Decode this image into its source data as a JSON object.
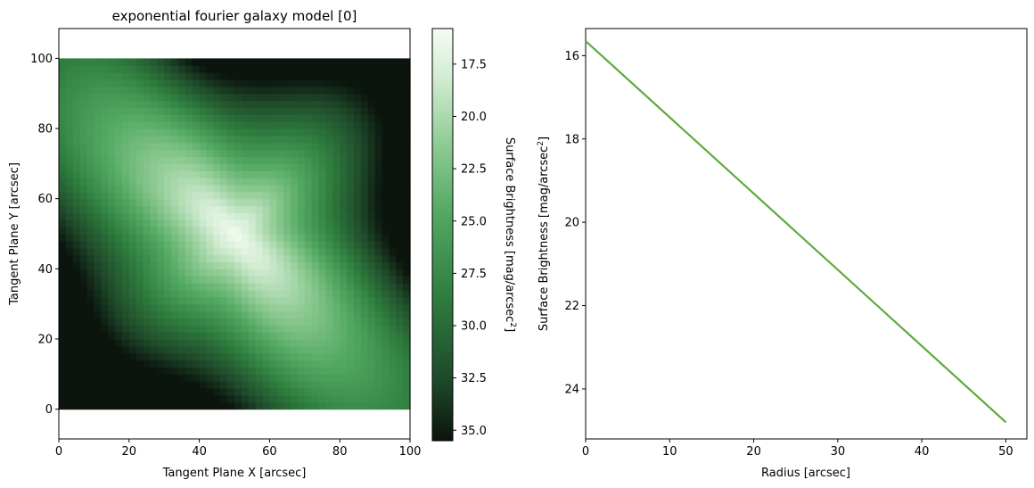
{
  "chart_data": [
    {
      "type": "heatmap",
      "title": "exponential fourier galaxy model [0]",
      "xlabel": "Tangent Plane X [arcsec]",
      "ylabel": "Tangent Plane Y [arcsec]",
      "xlim": [
        0,
        100
      ],
      "ylim": [
        -8.5,
        108.5
      ],
      "image_extent": [
        0,
        100,
        0,
        100
      ],
      "xticks": [
        0,
        20,
        40,
        60,
        80,
        100
      ],
      "yticks": [
        0,
        20,
        40,
        60,
        80,
        100
      ],
      "colorbar": {
        "label": "Surface Brightness [mag/arcsec",
        "label_sup": "2",
        "label_end": "]",
        "range": [
          15.8,
          35.5
        ],
        "ticks": [
          17.5,
          20.0,
          22.5,
          25.0,
          27.5,
          30.0,
          32.5,
          35.0
        ],
        "colormap": [
          "#0b140d",
          "#1f4a2a",
          "#2f7d3f",
          "#52a862",
          "#8fcb94",
          "#d2ecd2",
          "#f5fcf5"
        ]
      },
      "model": {
        "center": [
          50,
          50
        ],
        "peak_mag": 16,
        "notes": "brightest at center, elongated along upper-left diagonal"
      },
      "grid": false
    },
    {
      "type": "line",
      "xlabel": "Radius [arcsec]",
      "ylabel": "Surface Brightness [mag/arcsec",
      "ylabel_sup": "2",
      "ylabel_end": "]",
      "xlim": [
        0,
        52.5
      ],
      "ylim": [
        25.2,
        15.35
      ],
      "y_inverted": true,
      "xticks": [
        0,
        10,
        20,
        30,
        40,
        50
      ],
      "yticks": [
        16,
        18,
        20,
        22,
        24
      ],
      "series": [
        {
          "color": "#5aab3c",
          "x": [
            0,
            50
          ],
          "y": [
            15.65,
            24.8
          ]
        }
      ],
      "grid": false
    }
  ]
}
